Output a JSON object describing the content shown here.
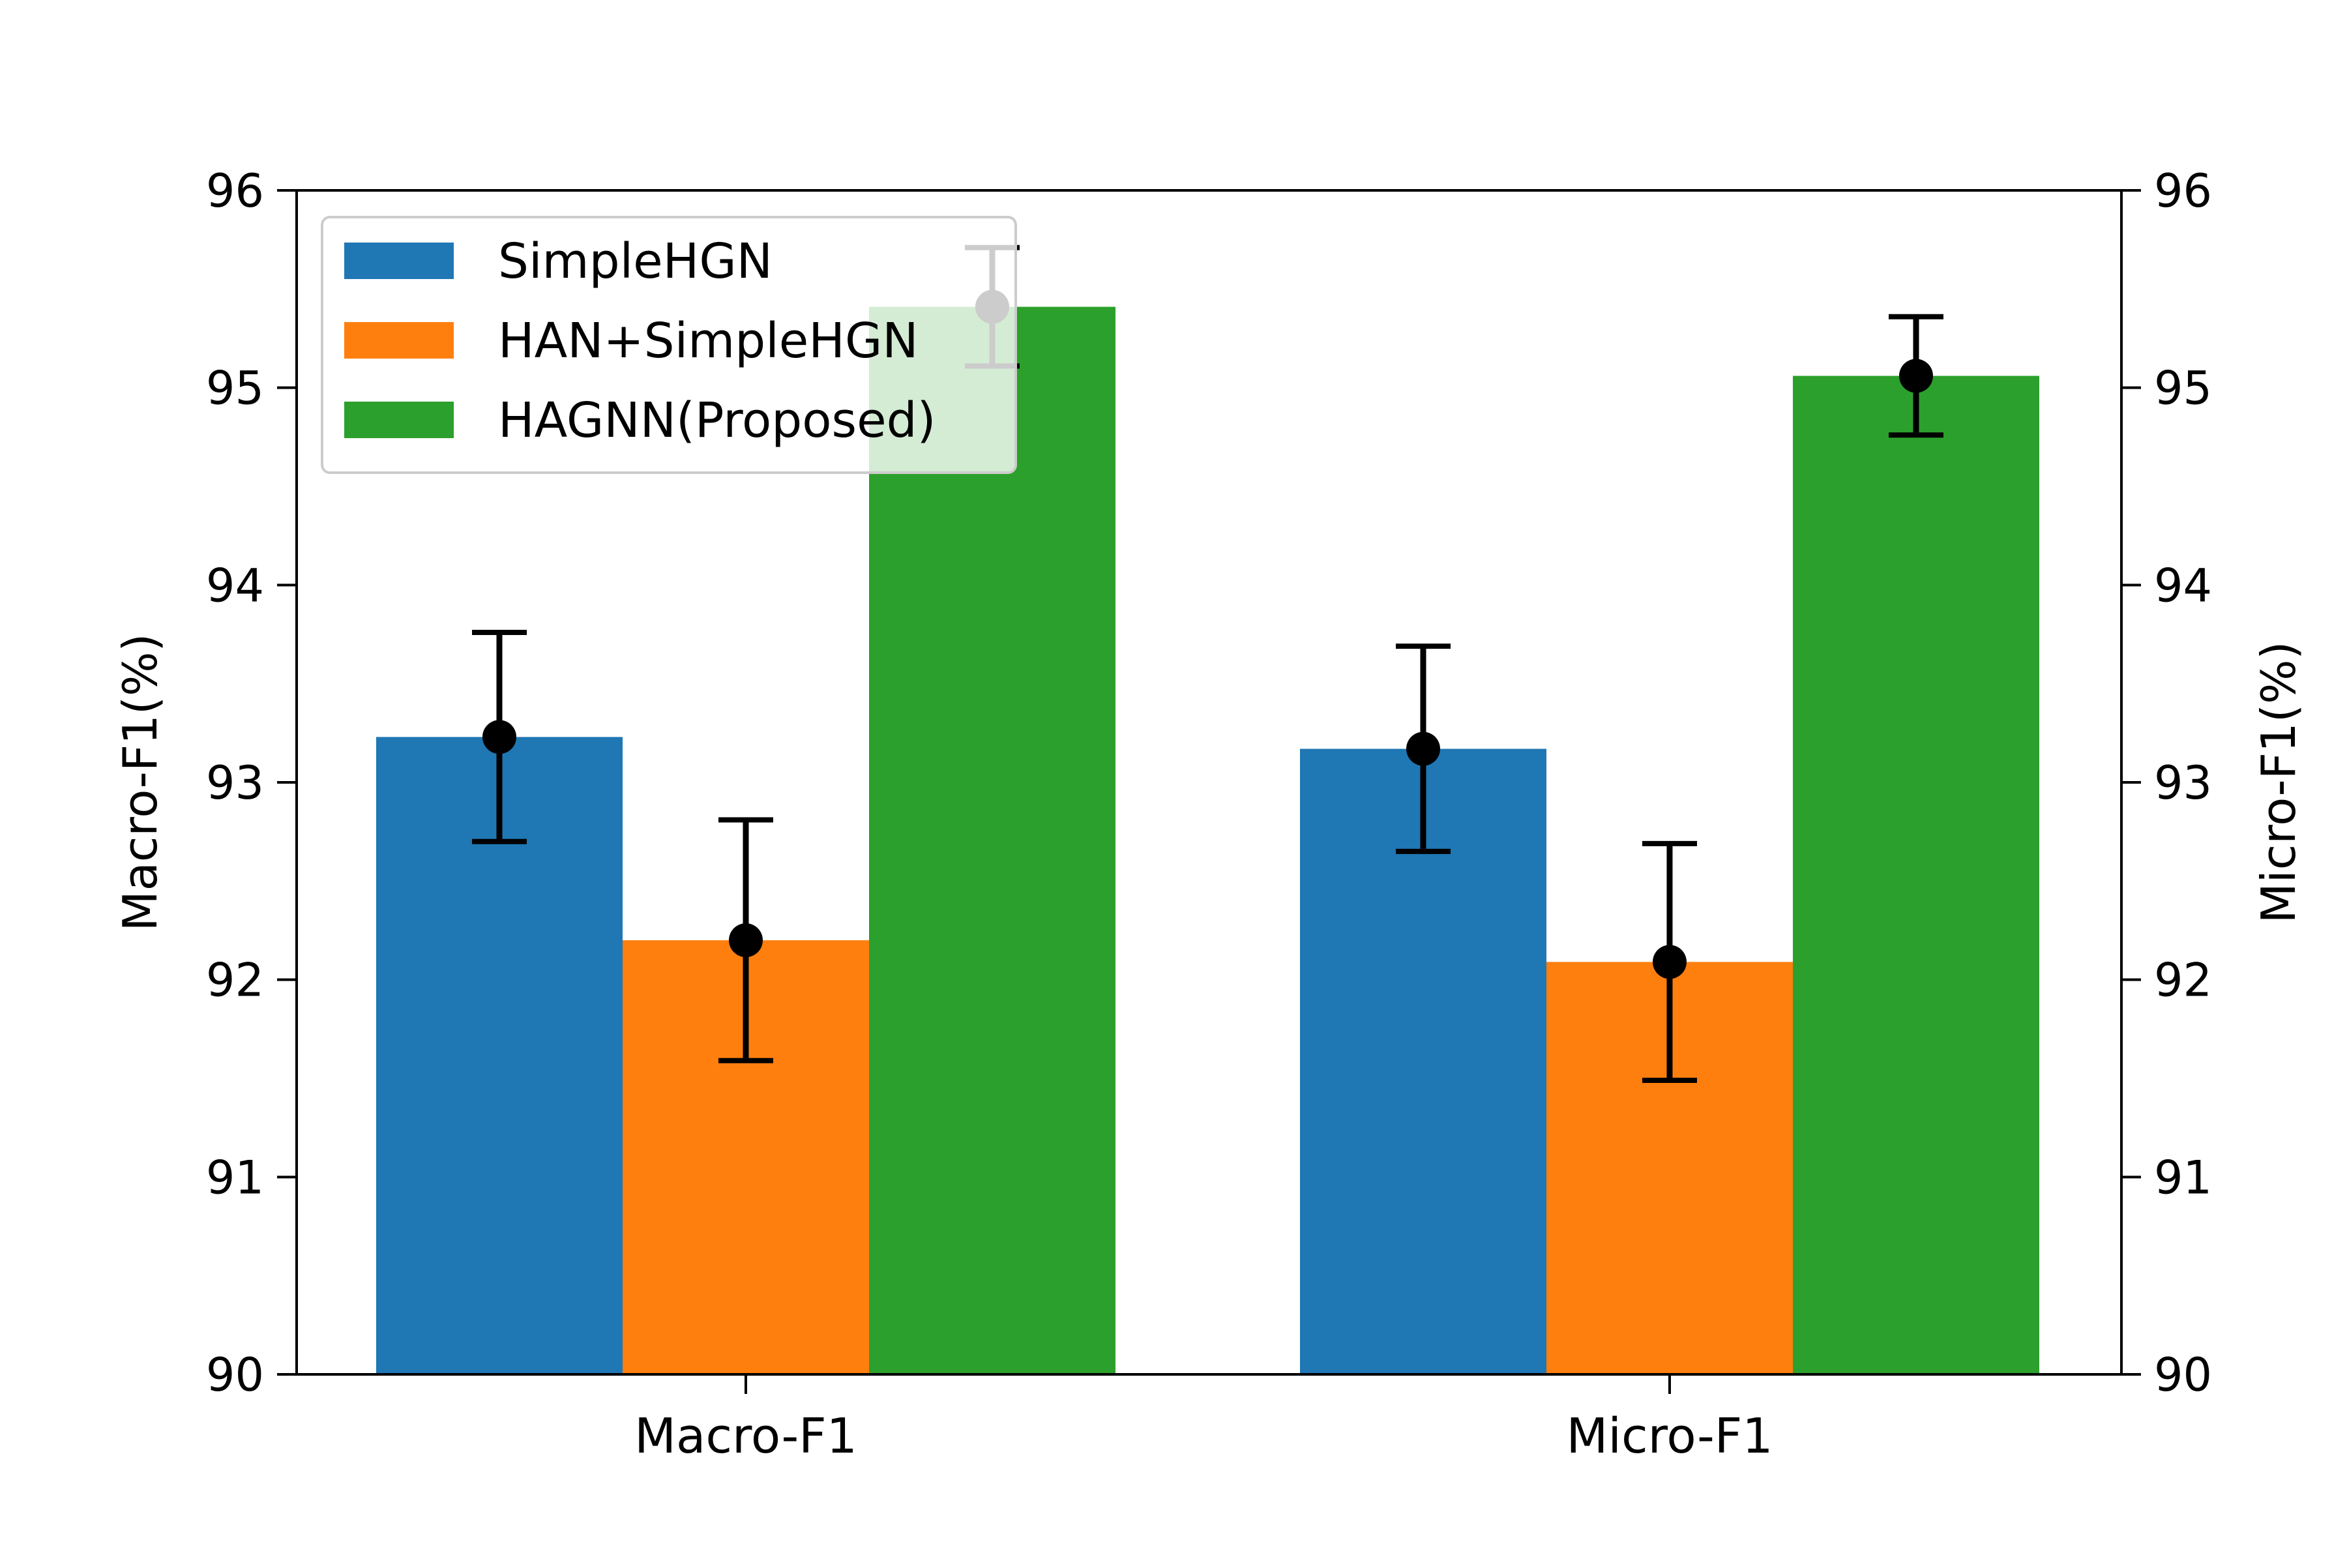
{
  "chart_data": {
    "type": "bar",
    "categories": [
      "Macro-F1",
      "Micro-F1"
    ],
    "series": [
      {
        "name": "SimpleHGN",
        "color": "#1f77b4",
        "values": [
          93.23,
          93.17
        ],
        "errors": [
          0.53,
          0.52
        ]
      },
      {
        "name": "HAN+SimpleHGN",
        "color": "#ff7f0e",
        "values": [
          92.2,
          92.09
        ],
        "errors": [
          0.61,
          0.6
        ]
      },
      {
        "name": "HAGNN(Proposed)",
        "color": "#2ca02c",
        "values": [
          95.41,
          95.06
        ],
        "errors": [
          0.3,
          0.3
        ]
      }
    ],
    "ylabel_left": "Macro-F1(%)",
    "ylabel_right": "Micro-F1(%)",
    "ylim": [
      90,
      96
    ],
    "yticks": [
      "90",
      "91",
      "92",
      "93",
      "94",
      "95",
      "96"
    ],
    "legend_position": "upper-left",
    "grid": false,
    "error_color": "#000000"
  }
}
